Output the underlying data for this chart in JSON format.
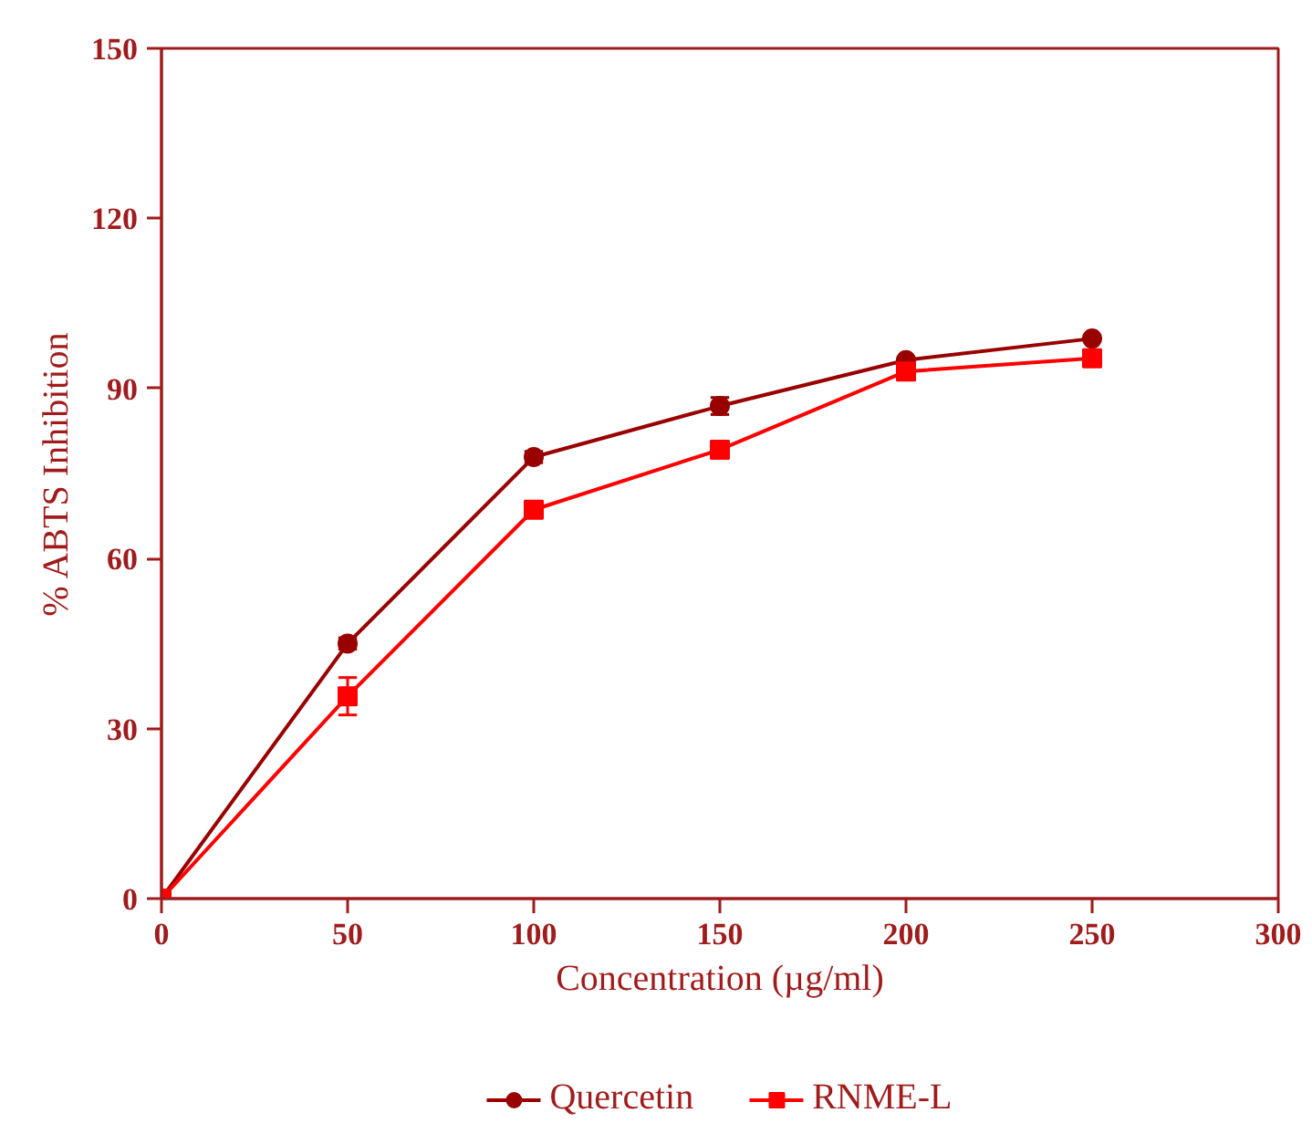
{
  "chart_data": {
    "type": "line",
    "xlabel": "Concentration (µg/ml)",
    "ylabel": "% ABTS Inhibition",
    "x": [
      0,
      50,
      100,
      150,
      200,
      250
    ],
    "series": [
      {
        "name": "Quercetin",
        "color": "#990000",
        "marker": "circle",
        "values": [
          0,
          45,
          77.9,
          86.9,
          95,
          98.8
        ],
        "errors": [
          null,
          1,
          1,
          1.5,
          null,
          null
        ]
      },
      {
        "name": "RNME-L",
        "color": "#ff0000",
        "marker": "square",
        "values": [
          0,
          35.7,
          68.6,
          79.2,
          93,
          95.3
        ],
        "errors": [
          null,
          3.3,
          1,
          null,
          null,
          null
        ]
      }
    ],
    "xlim": [
      0,
      300
    ],
    "xticks": [
      0,
      50,
      100,
      150,
      200,
      250,
      300
    ],
    "ylim": [
      0,
      150
    ],
    "yticks": [
      0,
      30,
      60,
      90,
      120,
      150
    ],
    "grid": false,
    "legend": "bottom",
    "line_style": "solid"
  }
}
